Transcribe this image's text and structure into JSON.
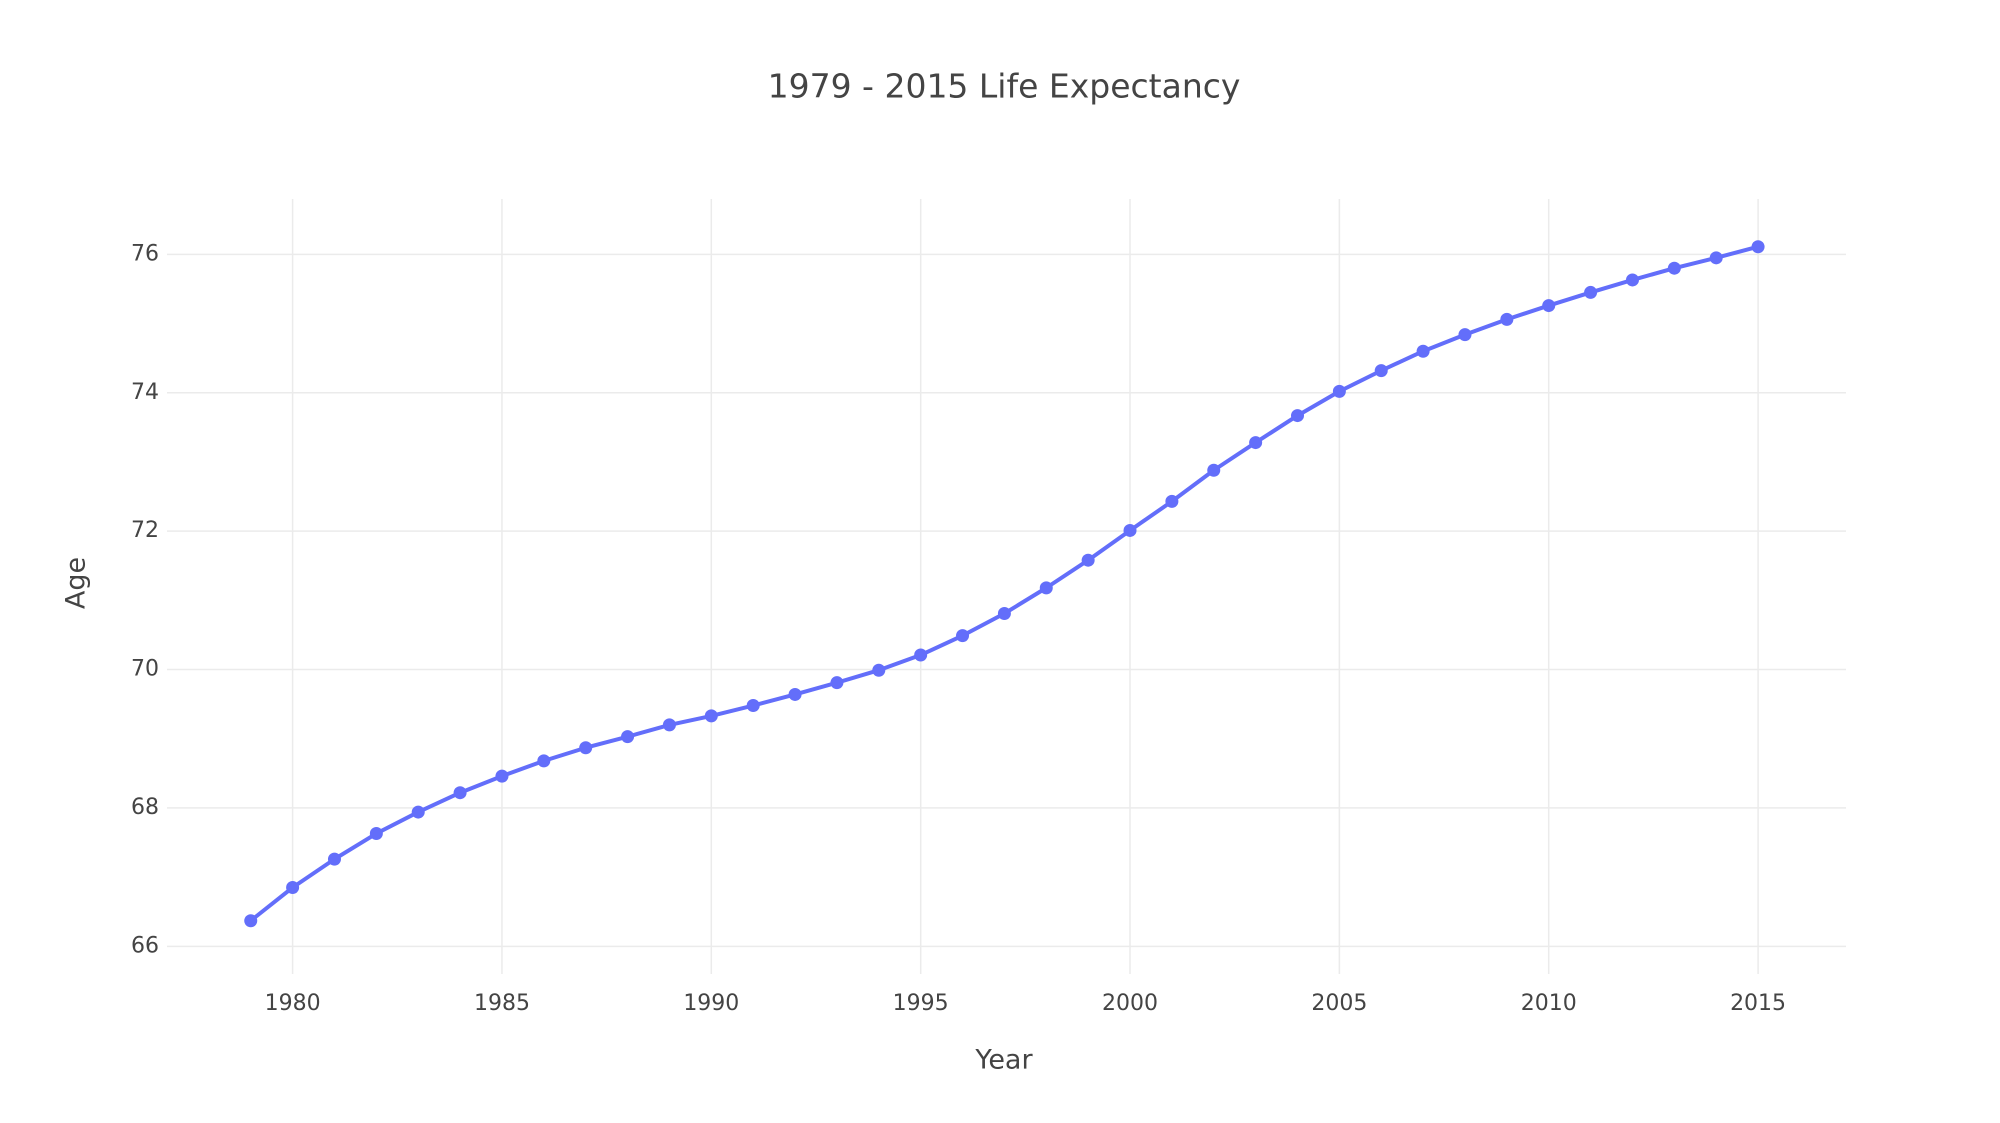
{
  "chart_data": {
    "type": "line",
    "title": "1979 - 2015 Life Expectancy",
    "x_label": "Year",
    "y_label": "Age",
    "x": [
      1979,
      1980,
      1981,
      1982,
      1983,
      1984,
      1985,
      1986,
      1987,
      1988,
      1989,
      1990,
      1991,
      1992,
      1993,
      1994,
      1995,
      1996,
      1997,
      1998,
      1999,
      2000,
      2001,
      2002,
      2003,
      2004,
      2005,
      2006,
      2007,
      2008,
      2009,
      2010,
      2011,
      2012,
      2013,
      2014,
      2015
    ],
    "series": [
      {
        "color": "#636efa",
        "values": [
          66.37,
          66.85,
          67.26,
          67.63,
          67.94,
          68.22,
          68.46,
          68.68,
          68.87,
          69.03,
          69.2,
          69.33,
          69.48,
          69.64,
          69.81,
          69.99,
          70.21,
          70.49,
          70.81,
          71.18,
          71.58,
          72.01,
          72.43,
          72.88,
          73.28,
          73.67,
          74.02,
          74.32,
          74.6,
          74.84,
          75.06,
          75.26,
          75.45,
          75.63,
          75.8,
          75.95,
          76.11
        ]
      }
    ],
    "xlim": [
      1977,
      2017.1
    ],
    "xticks": [
      1980,
      1985,
      1990,
      1995,
      2000,
      2005,
      2010,
      2015
    ],
    "ylim": [
      65.6,
      76.8
    ],
    "yticks": [
      66,
      68,
      70,
      72,
      74,
      76
    ],
    "grid": true
  }
}
